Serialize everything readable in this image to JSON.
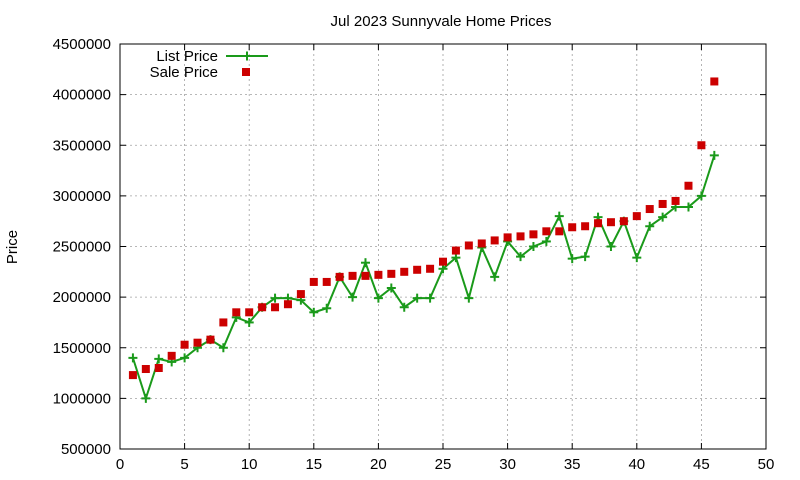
{
  "chart_data": {
    "type": "line",
    "title": "Jul 2023 Sunnyvale Home Prices",
    "xlabel": "",
    "ylabel": "Price",
    "xlim": [
      0,
      50
    ],
    "ylim": [
      500000,
      4500000
    ],
    "xticks": [
      0,
      5,
      10,
      15,
      20,
      25,
      30,
      35,
      40,
      45,
      50
    ],
    "yticks": [
      500000,
      1000000,
      1500000,
      2000000,
      2500000,
      3000000,
      3500000,
      4000000,
      4500000
    ],
    "grid": true,
    "legend_position": "top-left",
    "series": [
      {
        "name": "List Price",
        "style": "line-points",
        "marker": "plus",
        "color": "#1a9a1a",
        "x": [
          1,
          2,
          3,
          4,
          5,
          6,
          7,
          8,
          9,
          10,
          11,
          12,
          13,
          14,
          15,
          16,
          17,
          18,
          19,
          20,
          21,
          22,
          23,
          24,
          25,
          26,
          27,
          28,
          29,
          30,
          31,
          32,
          33,
          34,
          35,
          36,
          37,
          38,
          39,
          40,
          41,
          42,
          43,
          44,
          45,
          46
        ],
        "y": [
          1400000,
          1000000,
          1390000,
          1360000,
          1400000,
          1500000,
          1580000,
          1500000,
          1800000,
          1750000,
          1900000,
          1990000,
          1990000,
          1970000,
          1850000,
          1890000,
          2200000,
          2000000,
          2340000,
          1990000,
          2090000,
          1900000,
          1990000,
          1990000,
          2280000,
          2390000,
          1990000,
          2490000,
          2200000,
          2550000,
          2400000,
          2500000,
          2550000,
          2800000,
          2380000,
          2400000,
          2790000,
          2500000,
          2750000,
          2390000,
          2700000,
          2790000,
          2890000,
          2890000,
          3000000,
          3400000
        ]
      },
      {
        "name": "Sale Price",
        "style": "points",
        "marker": "square",
        "color": "#cc0000",
        "x": [
          1,
          2,
          3,
          4,
          5,
          6,
          7,
          8,
          9,
          10,
          11,
          12,
          13,
          14,
          15,
          16,
          17,
          18,
          19,
          20,
          21,
          22,
          23,
          24,
          25,
          26,
          27,
          28,
          29,
          30,
          31,
          32,
          33,
          34,
          35,
          36,
          37,
          38,
          39,
          40,
          41,
          42,
          43,
          44,
          45,
          46
        ],
        "y": [
          1230000,
          1290000,
          1300000,
          1420000,
          1530000,
          1550000,
          1580000,
          1750000,
          1850000,
          1850000,
          1900000,
          1900000,
          1930000,
          2030000,
          2150000,
          2150000,
          2200000,
          2210000,
          2210000,
          2220000,
          2230000,
          2250000,
          2270000,
          2280000,
          2350000,
          2460000,
          2510000,
          2530000,
          2560000,
          2590000,
          2600000,
          2620000,
          2650000,
          2650000,
          2690000,
          2700000,
          2730000,
          2740000,
          2750000,
          2800000,
          2870000,
          2920000,
          2950000,
          3100000,
          3500000,
          4130000
        ]
      }
    ]
  }
}
